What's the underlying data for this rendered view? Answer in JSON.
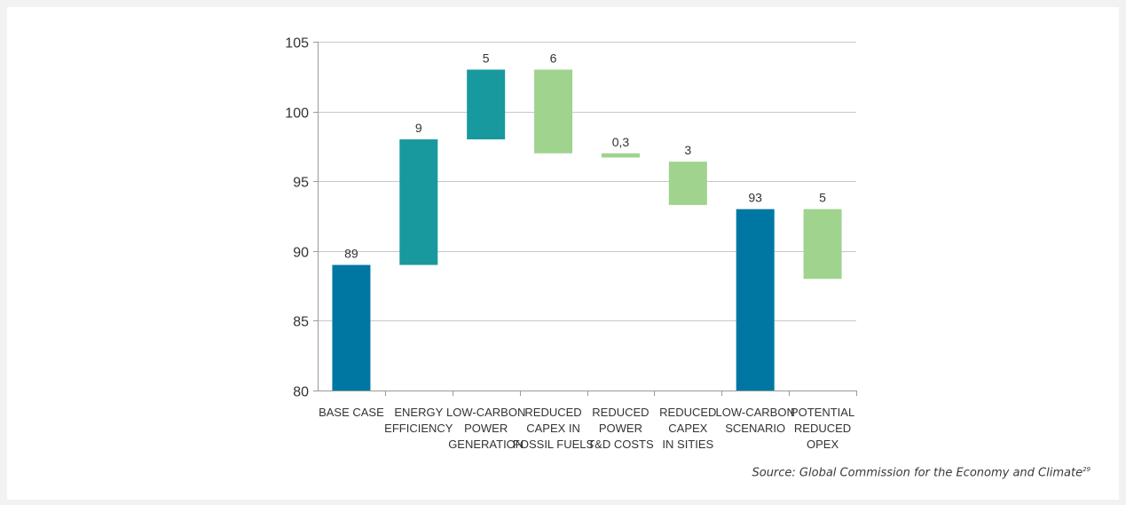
{
  "chart_data": {
    "type": "waterfall",
    "categories": [
      [
        "BASE CASE"
      ],
      [
        "ENERGY",
        "EFFICIENCY"
      ],
      [
        "LOW-CARBON",
        "POWER",
        "GENERATION"
      ],
      [
        "REDUCED",
        "CAPEX IN",
        "FOSSIL FUELS"
      ],
      [
        "REDUCED",
        "POWER",
        "T&D COSTS"
      ],
      [
        "REDUCED",
        "CAPEX",
        "IN SITIES"
      ],
      [
        "LOW-CARBON",
        "SCENARIO"
      ],
      [
        "POTENTIAL",
        "REDUCED",
        "OPEX"
      ]
    ],
    "bars": [
      {
        "label": "89",
        "start": 80,
        "end": 89,
        "color": "#0077a3"
      },
      {
        "label": "9",
        "start": 89,
        "end": 98,
        "color": "#17999e"
      },
      {
        "label": "5",
        "start": 98,
        "end": 103,
        "color": "#17999e"
      },
      {
        "label": "6",
        "start": 97,
        "end": 103,
        "color": "#9fd38e"
      },
      {
        "label": "0,3",
        "start": 96.7,
        "end": 97,
        "color": "#9fd38e"
      },
      {
        "label": "3",
        "start": 93.3,
        "end": 96.4,
        "color": "#9fd38e"
      },
      {
        "label": "93",
        "start": 80,
        "end": 93,
        "color": "#0077a3"
      },
      {
        "label": "5",
        "start": 88,
        "end": 93,
        "color": "#9fd38e"
      }
    ],
    "ylim": [
      80,
      105
    ],
    "yticks": [
      80,
      85,
      90,
      95,
      100,
      105
    ],
    "grid": true,
    "title": "",
    "xlabel": "",
    "ylabel": ""
  },
  "source": {
    "text": "Source: Global Commission for the Economy and Climate",
    "sup": "29"
  }
}
